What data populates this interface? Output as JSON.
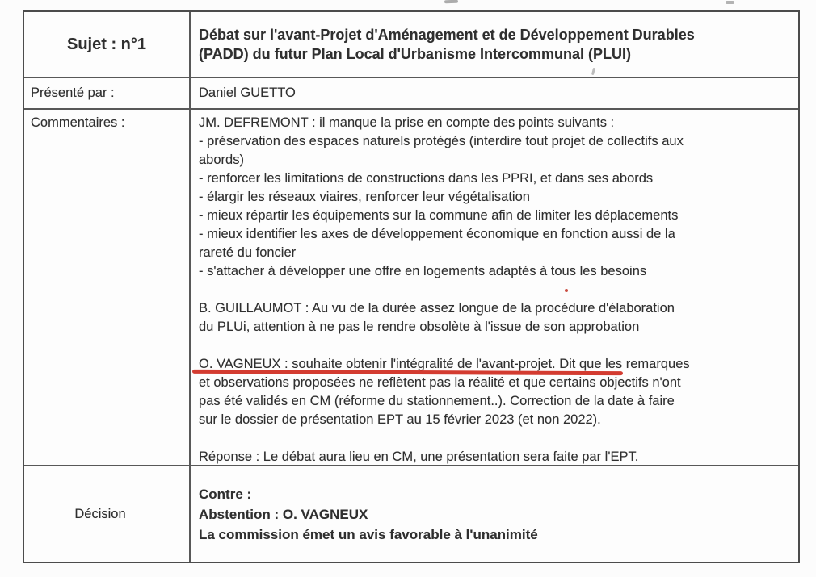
{
  "document": {
    "subject": {
      "label": "Sujet : n°1",
      "title": "Débat sur l'avant-Projet d'Aménagement et de Développement Durables\n(PADD) du futur Plan Local d'Urbanisme Intercommunal (PLUI)"
    },
    "presenter": {
      "label": "Présenté par :",
      "name": "Daniel GUETTO"
    },
    "comments": {
      "label": "Commentaires :",
      "paragraphs": [
        "JM. DEFREMONT : il manque la prise en compte des points suivants :\n- préservation des espaces naturels protégés (interdire tout projet de collectifs aux\nabords)\n- renforcer les limitations de constructions dans les PPRI, et dans ses abords\n- élargir les réseaux viaires, renforcer leur végétalisation\n- mieux répartir les équipements sur la commune afin de limiter les déplacements\n- mieux identifier les axes de développement économique en fonction aussi de la\nrareté du foncier\n- s'attacher à développer une offre en logements adaptés à tous les besoins",
        "B. GUILLAUMOT : Au vu de la durée assez longue de la procédure d'élaboration\ndu PLUi, attention à ne pas le rendre obsolète à l'issue de son approbation",
        "O. VAGNEUX : souhaite obtenir l'intégralité de l'avant-projet. Dit que les remarques\net observations proposées ne reflètent pas la réalité et que certains objectifs n'ont\npas été validés en CM (réforme du stationnement..). Correction de la date à faire\nsur le dossier de présentation EPT au 15 février 2023 (et non 2022).",
        "Réponse : Le débat aura lieu en CM, une présentation sera faite par l'EPT."
      ],
      "underline": {
        "text_underlined": "O. VAGNEUX : souhaite obtenir l'intégralité de l'avant-projet.",
        "color": "#cf2a1e"
      }
    },
    "decision": {
      "label": "Décision",
      "content": "Contre :\nAbstention : O. VAGNEUX\nLa commission émet un avis favorable à l'unanimité"
    }
  }
}
